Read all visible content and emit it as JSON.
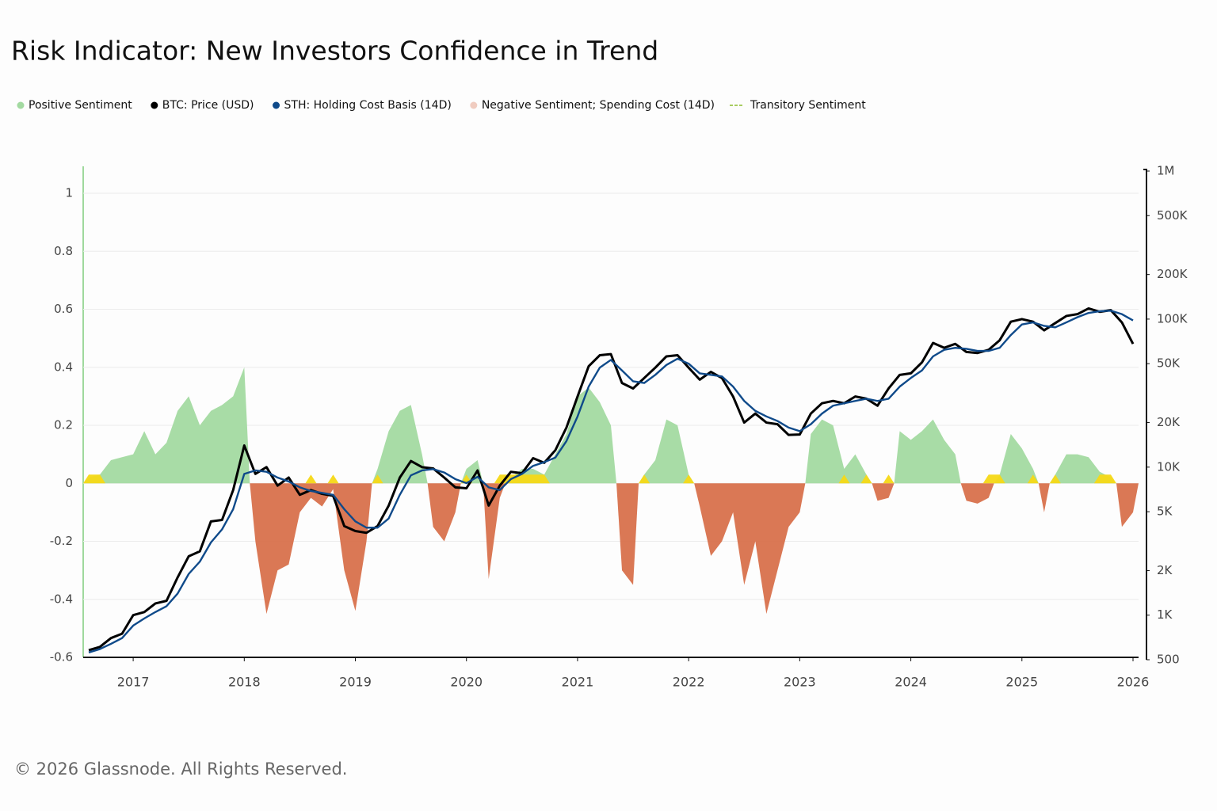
{
  "chart_data": {
    "type": "line",
    "title": "Risk Indicator: New Investors Confidence in Trend",
    "footer": "© 2026 Glassnode. All Rights Reserved.",
    "x": [
      2016.6,
      2016.7,
      2016.8,
      2016.9,
      2017,
      2017.1,
      2017.2,
      2017.3,
      2017.4,
      2017.5,
      2017.6,
      2017.7,
      2017.8,
      2017.9,
      2018,
      2018.1,
      2018.2,
      2018.3,
      2018.4,
      2018.5,
      2018.6,
      2018.7,
      2018.8,
      2018.9,
      2019,
      2019.1,
      2019.2,
      2019.3,
      2019.4,
      2019.5,
      2019.6,
      2019.7,
      2019.8,
      2019.9,
      2020,
      2020.1,
      2020.2,
      2020.3,
      2020.4,
      2020.5,
      2020.6,
      2020.7,
      2020.8,
      2020.9,
      2021,
      2021.1,
      2021.2,
      2021.3,
      2021.4,
      2021.5,
      2021.6,
      2021.7,
      2021.8,
      2021.9,
      2022,
      2022.1,
      2022.2,
      2022.3,
      2022.4,
      2022.5,
      2022.6,
      2022.7,
      2022.8,
      2022.9,
      2023,
      2023.1,
      2023.2,
      2023.3,
      2023.4,
      2023.5,
      2023.6,
      2023.7,
      2023.8,
      2023.9,
      2024,
      2024.1,
      2024.2,
      2024.3,
      2024.4,
      2024.5,
      2024.6,
      2024.7,
      2024.8,
      2024.9,
      2025,
      2025.1,
      2025.2,
      2025.3,
      2025.4,
      2025.5,
      2025.6,
      2025.7,
      2025.8,
      2025.9,
      2026
    ],
    "xlim": [
      2016.55,
      2026.05
    ],
    "xticks": [
      2017,
      2018,
      2019,
      2020,
      2021,
      2022,
      2023,
      2024,
      2025,
      2026
    ],
    "ylim": [
      -0.6,
      1
    ],
    "yticks": [
      -0.6,
      -0.4,
      -0.2,
      0,
      0.2,
      0.4,
      0.6,
      0.8,
      1
    ],
    "y2lim": [
      500,
      1000000
    ],
    "y2scale": "log",
    "y2ticks": [
      {
        "value": 1000000,
        "label": "1M"
      },
      {
        "value": 500000,
        "label": "500K"
      },
      {
        "value": 200000,
        "label": "200K"
      },
      {
        "value": 100000,
        "label": "100K"
      },
      {
        "value": 50000,
        "label": "50K"
      },
      {
        "value": 20000,
        "label": "20K"
      },
      {
        "value": 10000,
        "label": "10K"
      },
      {
        "value": 5000,
        "label": "5K"
      },
      {
        "value": 2000,
        "label": "2K"
      },
      {
        "value": 1000,
        "label": "1K"
      },
      500
    ],
    "grid": true,
    "series": [
      {
        "name": "Positive Sentiment",
        "color": "#a3daa1",
        "style": "area",
        "marker": "dot",
        "values": [
          0.02,
          0.03,
          0.08,
          0.09,
          0.1,
          0.18,
          0.1,
          0.14,
          0.25,
          0.3,
          0.2,
          0.25,
          0.27,
          0.3,
          0.4,
          null,
          null,
          null,
          null,
          null,
          null,
          null,
          null,
          null,
          null,
          null,
          0.05,
          0.18,
          0.25,
          0.27,
          0.1,
          null,
          null,
          null,
          0.05,
          0.08,
          null,
          null,
          0.02,
          0.05,
          0.05,
          0.03,
          0.1,
          0.17,
          0.3,
          0.33,
          0.28,
          0.2,
          null,
          null,
          0.03,
          0.08,
          0.22,
          0.2,
          0.03,
          null,
          null,
          null,
          null,
          null,
          null,
          null,
          null,
          null,
          null,
          0.17,
          0.22,
          0.2,
          0.05,
          0.1,
          0.03,
          null,
          null,
          0.18,
          0.15,
          0.18,
          0.22,
          0.15,
          0.1,
          null,
          null,
          null,
          0.03,
          0.17,
          0.12,
          0.05,
          null,
          0.03,
          0.1,
          0.1,
          0.09,
          0.04,
          0.02,
          null,
          null
        ]
      },
      {
        "name": "BTC: Price (USD)",
        "color": "#000000",
        "style": "line",
        "marker": "dot",
        "axis": "y2",
        "values": [
          580,
          610,
          700,
          750,
          1000,
          1050,
          1200,
          1250,
          1800,
          2500,
          2700,
          4300,
          4400,
          7000,
          14000,
          9000,
          10000,
          7500,
          8500,
          6500,
          7000,
          6600,
          6400,
          4000,
          3700,
          3600,
          4000,
          5500,
          8500,
          11000,
          10000,
          9800,
          8500,
          7300,
          7200,
          9500,
          5500,
          7500,
          9300,
          9100,
          11500,
          10700,
          13000,
          18500,
          30000,
          48000,
          57000,
          58000,
          37000,
          34000,
          40000,
          47000,
          56000,
          57000,
          47000,
          39000,
          44000,
          40000,
          30000,
          20000,
          23000,
          20000,
          19500,
          16500,
          16600,
          23000,
          27000,
          28000,
          27000,
          30000,
          29000,
          26000,
          34000,
          42000,
          43000,
          51000,
          69000,
          64000,
          68000,
          60000,
          59000,
          62000,
          72000,
          96000,
          100000,
          96000,
          84000,
          94000,
          105000,
          108000,
          118000,
          112000,
          115000,
          95000,
          68000
        ]
      },
      {
        "name": "STH: Holding Cost Basis (14D)",
        "color": "#0f4a8a",
        "style": "line",
        "marker": "dot",
        "axis": "y2",
        "values": [
          560,
          590,
          640,
          700,
          850,
          950,
          1050,
          1150,
          1400,
          1900,
          2300,
          3100,
          3800,
          5200,
          9000,
          9500,
          9300,
          8500,
          8000,
          7300,
          6900,
          6700,
          6500,
          5200,
          4300,
          3900,
          3900,
          4500,
          6500,
          8800,
          9500,
          9700,
          9200,
          8300,
          7800,
          8600,
          7300,
          7000,
          8300,
          9000,
          10200,
          10800,
          11600,
          15000,
          22000,
          35000,
          47000,
          53000,
          45000,
          38000,
          37000,
          42000,
          49000,
          54000,
          50000,
          43000,
          42000,
          41000,
          35000,
          28000,
          24000,
          22000,
          20500,
          18500,
          17500,
          19500,
          23000,
          26000,
          27000,
          28000,
          29000,
          28000,
          29000,
          35000,
          40000,
          45000,
          56000,
          62000,
          64000,
          63000,
          61000,
          61000,
          64000,
          78000,
          92000,
          95000,
          90000,
          88000,
          95000,
          103000,
          110000,
          113000,
          114000,
          108000,
          98000
        ]
      },
      {
        "name": "Negative Sentiment; Spending Cost (14D)",
        "color": "#d8714c",
        "style": "area",
        "marker": "dot",
        "values": [
          null,
          null,
          null,
          null,
          null,
          null,
          null,
          null,
          null,
          null,
          null,
          null,
          null,
          null,
          null,
          -0.2,
          -0.45,
          -0.3,
          -0.28,
          -0.1,
          -0.05,
          -0.08,
          -0.02,
          -0.3,
          -0.44,
          -0.2,
          null,
          null,
          null,
          null,
          null,
          -0.15,
          -0.2,
          -0.1,
          null,
          null,
          -0.33,
          -0.05,
          null,
          null,
          null,
          null,
          null,
          null,
          null,
          null,
          null,
          null,
          -0.3,
          -0.35,
          null,
          null,
          null,
          null,
          null,
          -0.08,
          -0.25,
          -0.2,
          -0.1,
          -0.35,
          -0.2,
          -0.45,
          -0.3,
          -0.15,
          -0.1,
          null,
          null,
          null,
          null,
          null,
          null,
          -0.06,
          -0.05,
          null,
          null,
          null,
          null,
          null,
          null,
          -0.06,
          -0.07,
          -0.05,
          null,
          null,
          null,
          null,
          -0.1,
          null,
          null,
          null,
          null,
          null,
          null,
          -0.15,
          -0.1
        ]
      },
      {
        "name": "Transitory Sentiment",
        "color": "#f5d816",
        "style": "area",
        "marker": "dash",
        "values": [
          0.03,
          0.03,
          null,
          null,
          null,
          null,
          null,
          null,
          null,
          null,
          null,
          null,
          null,
          null,
          null,
          null,
          null,
          null,
          null,
          null,
          0.03,
          null,
          0.03,
          null,
          null,
          null,
          0.03,
          null,
          null,
          null,
          null,
          null,
          null,
          null,
          0.03,
          null,
          null,
          0.03,
          0.03,
          0.03,
          0.03,
          0.03,
          null,
          null,
          null,
          null,
          null,
          null,
          null,
          null,
          0.03,
          null,
          null,
          null,
          0.03,
          null,
          null,
          null,
          null,
          null,
          null,
          null,
          null,
          null,
          null,
          null,
          null,
          null,
          0.03,
          null,
          0.03,
          null,
          0.03,
          null,
          null,
          null,
          null,
          null,
          null,
          null,
          null,
          0.03,
          0.03,
          null,
          null,
          0.03,
          null,
          0.03,
          null,
          null,
          null,
          0.03,
          0.03,
          null,
          null
        ]
      }
    ]
  }
}
